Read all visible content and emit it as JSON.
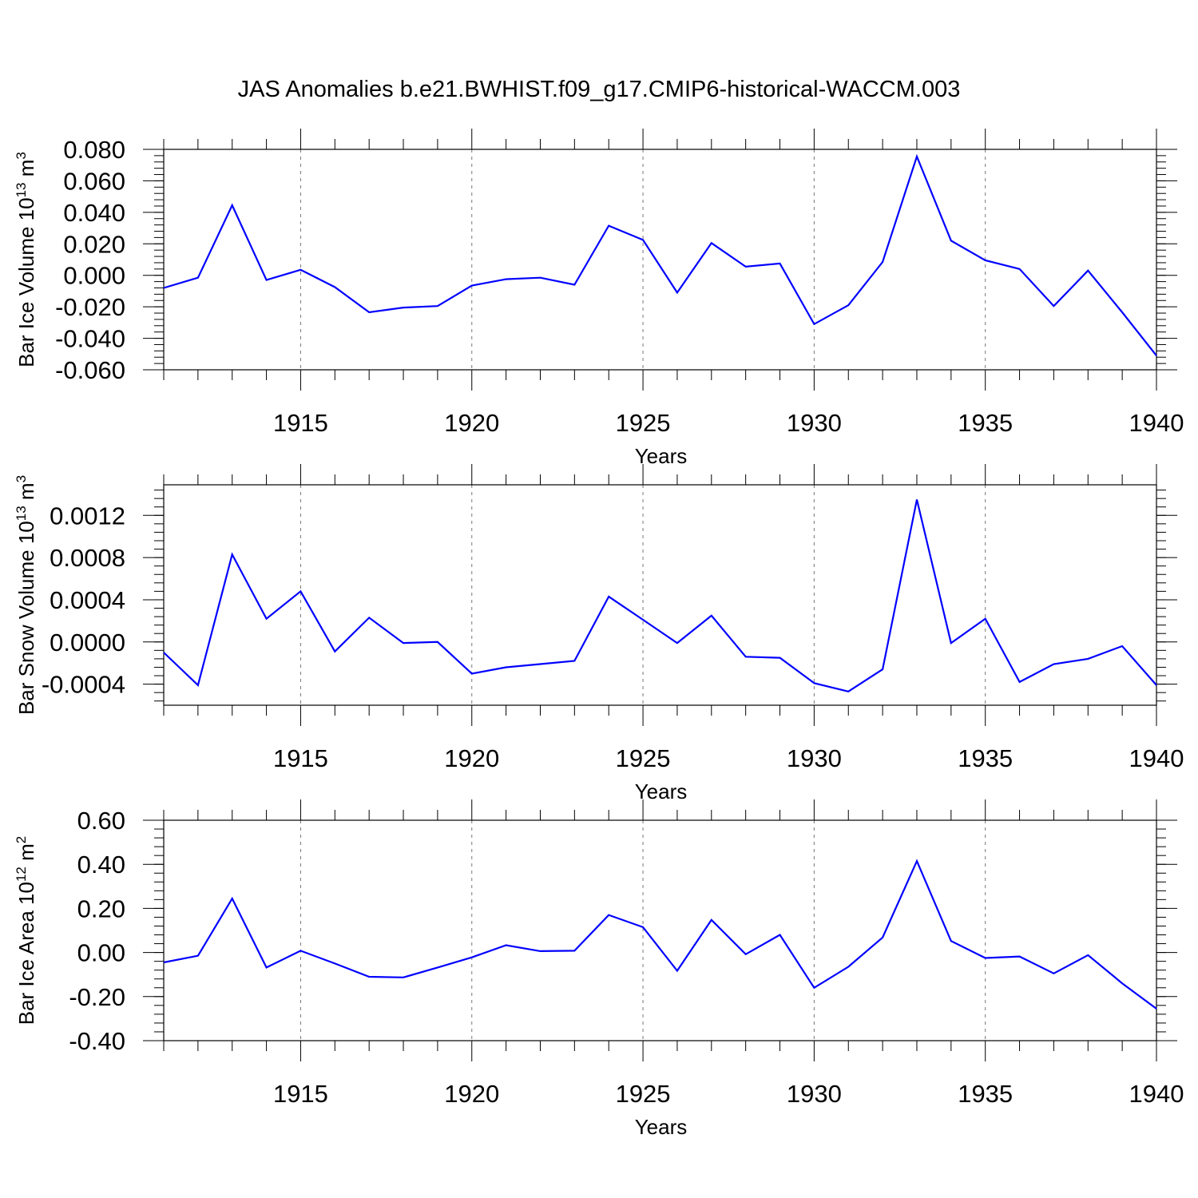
{
  "title": "JAS Anomalies b.e21.BWHIST.f09_g17.CMIP6-historical-WACCM.003",
  "colors": {
    "line": "#0000ff",
    "axis": "#000000",
    "grid": "#777777"
  },
  "chart_data": [
    {
      "type": "line",
      "xlabel": "Years",
      "ylabel_main": "Bar Ice Volume 10",
      "ylabel_exp": "13",
      "ylabel_unit": " m",
      "ylabel_unit_exp": "3",
      "xlim": [
        1911,
        1940
      ],
      "ylim": [
        -0.06,
        0.08
      ],
      "xticks": [
        1915,
        1920,
        1925,
        1930,
        1935,
        1940
      ],
      "xtick_labels": [
        "1915",
        "1920",
        "1925",
        "1930",
        "1935",
        "1940"
      ],
      "yticks": [
        -0.06,
        -0.04,
        -0.02,
        0.0,
        0.02,
        0.04,
        0.06,
        0.08
      ],
      "ytick_labels": [
        "-0.060",
        "-0.040",
        "-0.020",
        "0.000",
        "0.020",
        "0.040",
        "0.060",
        "0.080"
      ],
      "grid": "vertical dashed at major x ticks",
      "x": [
        1911,
        1912,
        1913,
        1914,
        1915,
        1916,
        1917,
        1918,
        1919,
        1920,
        1921,
        1922,
        1923,
        1924,
        1925,
        1926,
        1927,
        1928,
        1929,
        1930,
        1931,
        1932,
        1933,
        1934,
        1935,
        1936,
        1937,
        1938,
        1939,
        1940
      ],
      "series": [
        {
          "values": [
            -0.008,
            -0.0015,
            0.0445,
            -0.003,
            0.0035,
            -0.0075,
            -0.0235,
            -0.0205,
            -0.0195,
            -0.0065,
            -0.0025,
            -0.0015,
            -0.006,
            0.0315,
            0.0225,
            -0.011,
            0.0205,
            0.0055,
            0.0075,
            -0.031,
            -0.019,
            0.0085,
            0.0755,
            0.022,
            0.0095,
            0.004,
            -0.0195,
            0.003,
            -0.0235,
            -0.051
          ]
        }
      ]
    },
    {
      "type": "line",
      "xlabel": "Years",
      "ylabel_main": "Bar Snow Volume 10",
      "ylabel_exp": "13",
      "ylabel_unit": " m",
      "ylabel_unit_exp": "3",
      "xlim": [
        1911,
        1940
      ],
      "ylim": [
        -0.0006,
        0.00149
      ],
      "xticks": [
        1915,
        1920,
        1925,
        1930,
        1935,
        1940
      ],
      "xtick_labels": [
        "1915",
        "1920",
        "1925",
        "1930",
        "1935",
        "1940"
      ],
      "yticks": [
        -0.0004,
        0.0,
        0.0004,
        0.0008,
        0.0012
      ],
      "ytick_labels": [
        "-0.0004",
        "0.0000",
        "0.0004",
        "0.0008",
        "0.0012"
      ],
      "grid": "vertical dashed at major x ticks",
      "x": [
        1911,
        1912,
        1913,
        1914,
        1915,
        1916,
        1917,
        1918,
        1919,
        1920,
        1921,
        1922,
        1923,
        1924,
        1925,
        1926,
        1927,
        1928,
        1929,
        1930,
        1931,
        1932,
        1933,
        1934,
        1935,
        1936,
        1937,
        1938,
        1939,
        1940
      ],
      "series": [
        {
          "values": [
            -0.0001,
            -0.00041,
            0.00083,
            0.00022,
            0.00048,
            -9e-05,
            0.00023,
            -1e-05,
            0.0,
            -0.0003,
            -0.00024,
            -0.00021,
            -0.00018,
            0.00043,
            0.00021,
            -1e-05,
            0.00025,
            -0.00014,
            -0.00015,
            -0.00039,
            -0.00047,
            -0.00026,
            0.00135,
            -1e-05,
            0.00022,
            -0.00038,
            -0.00021,
            -0.00016,
            -4e-05,
            -0.00041
          ]
        }
      ]
    },
    {
      "type": "line",
      "xlabel": "Years",
      "ylabel_main": "Bar Ice Area 10",
      "ylabel_exp": "12",
      "ylabel_unit": " m",
      "ylabel_unit_exp": "2",
      "xlim": [
        1911,
        1940
      ],
      "ylim": [
        -0.4,
        0.6
      ],
      "xticks": [
        1915,
        1920,
        1925,
        1930,
        1935,
        1940
      ],
      "xtick_labels": [
        "1915",
        "1920",
        "1925",
        "1930",
        "1935",
        "1940"
      ],
      "yticks": [
        -0.4,
        -0.2,
        0.0,
        0.2,
        0.4,
        0.6
      ],
      "ytick_labels": [
        "-0.40",
        "-0.20",
        "0.00",
        "0.20",
        "0.40",
        "0.60"
      ],
      "grid": "vertical dashed at major x ticks",
      "x": [
        1911,
        1912,
        1913,
        1914,
        1915,
        1916,
        1917,
        1918,
        1919,
        1920,
        1921,
        1922,
        1923,
        1924,
        1925,
        1926,
        1927,
        1928,
        1929,
        1930,
        1931,
        1932,
        1933,
        1934,
        1935,
        1936,
        1937,
        1938,
        1939,
        1940
      ],
      "series": [
        {
          "values": [
            -0.045,
            -0.015,
            0.245,
            -0.068,
            0.008,
            -0.05,
            -0.11,
            -0.113,
            -0.068,
            -0.022,
            0.033,
            0.006,
            0.008,
            0.17,
            0.115,
            -0.083,
            0.148,
            -0.008,
            0.08,
            -0.16,
            -0.065,
            0.068,
            0.415,
            0.052,
            -0.025,
            -0.018,
            -0.095,
            -0.012,
            -0.14,
            -0.255
          ]
        }
      ]
    }
  ]
}
